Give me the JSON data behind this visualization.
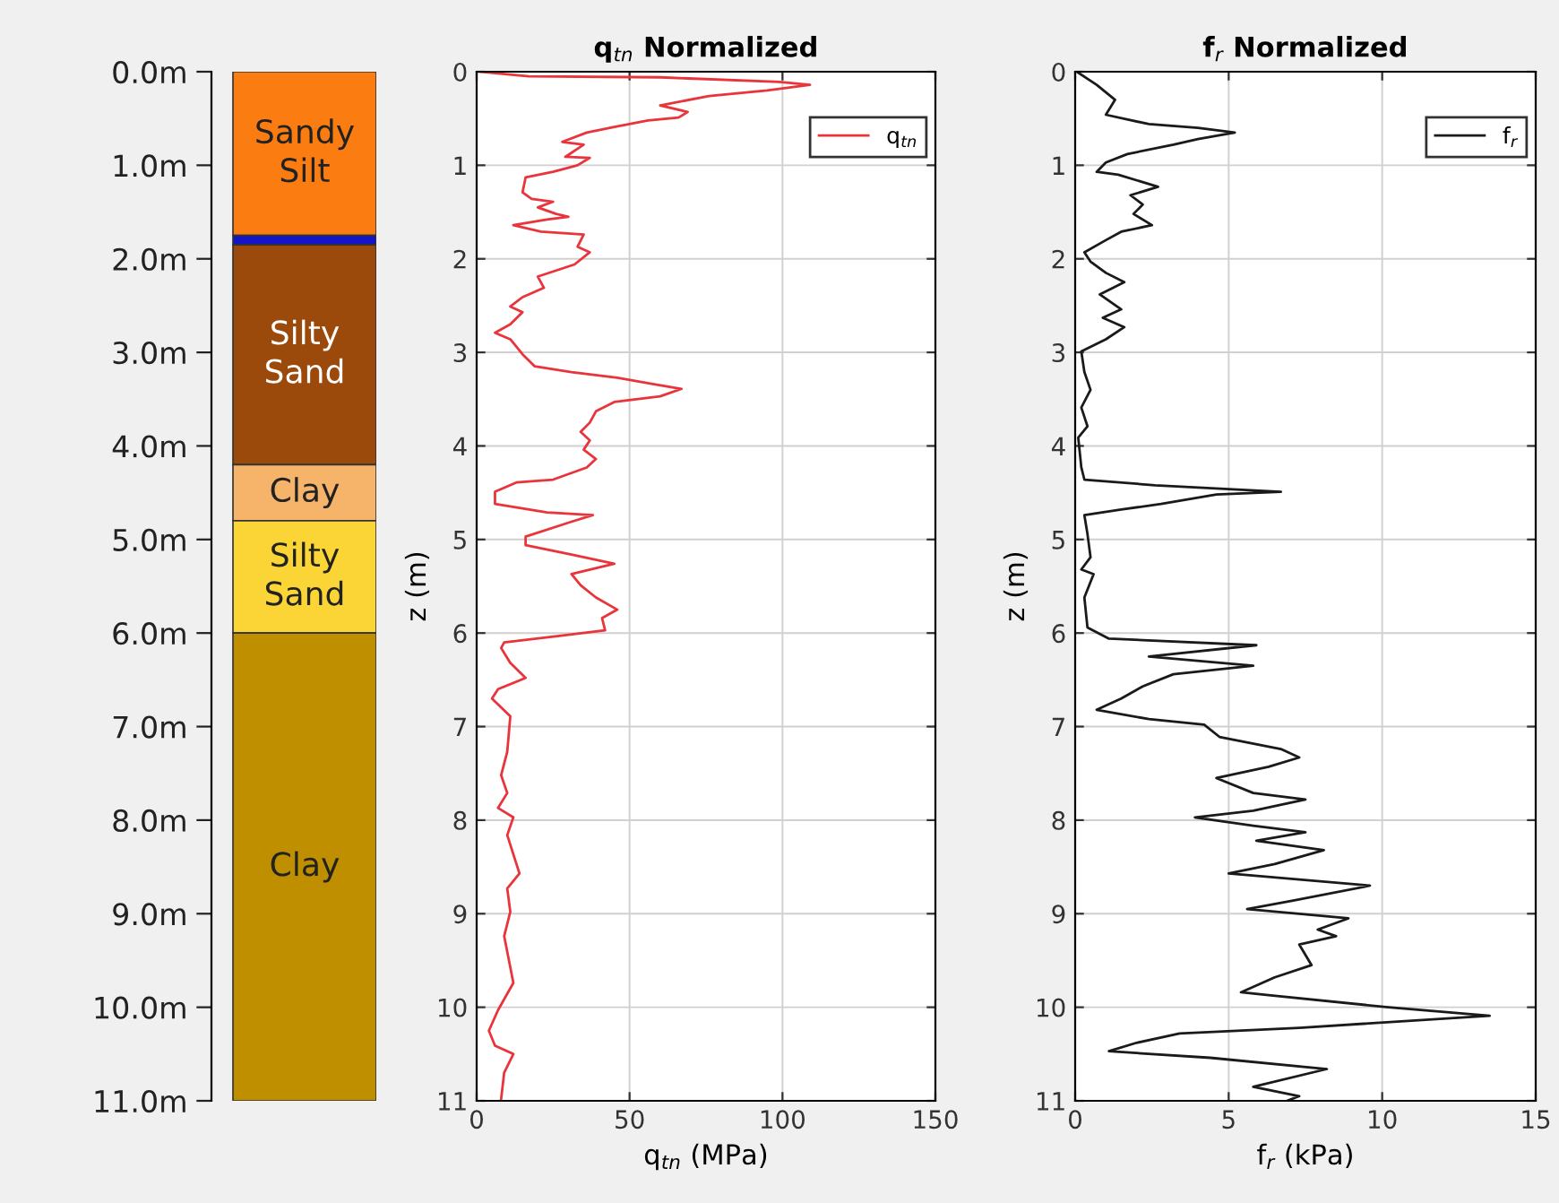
{
  "chart_data": [
    {
      "type": "bar",
      "stacked": true,
      "categories": [
        null
      ],
      "tick_labels": "y",
      "ylim": [
        11,
        0
      ],
      "yticks": [
        {
          "value": 0,
          "label": "0.0m"
        },
        {
          "value": 1,
          "label": "1.0m"
        },
        {
          "value": 2,
          "label": "2.0m"
        },
        {
          "value": 3,
          "label": "3.0m"
        },
        {
          "value": 4,
          "label": "4.0m"
        },
        {
          "value": 5,
          "label": "5.0m"
        },
        {
          "value": 6,
          "label": "6.0m"
        },
        {
          "value": 7,
          "label": "7.0m"
        },
        {
          "value": 8,
          "label": "8.0m"
        },
        {
          "value": 9,
          "label": "9.0m"
        },
        {
          "value": 10,
          "label": "10.0m"
        },
        {
          "value": 11,
          "label": "11.0m"
        }
      ],
      "series": [
        {
          "name": "Sandy Silt",
          "color": "#fb7d12",
          "values": [
            1.75
          ]
        },
        {
          "color": "#1414c8",
          "values": [
            0.1
          ]
        },
        {
          "name": "Silty Sand",
          "color": "#9b4a0b",
          "values": [
            2.35
          ]
        },
        {
          "name": "Clay",
          "color": "#f6b36a",
          "values": [
            0.6
          ]
        },
        {
          "name": "Silty Sand",
          "color": "#fbd535",
          "values": [
            1.2
          ]
        },
        {
          "name": "Clay",
          "color": "#bf8f00",
          "values": [
            5.0
          ]
        }
      ]
    },
    {
      "type": "line",
      "title": "q$_{tn}$ Normalized",
      "xlabel": "q$_{tn}$ (MPa)",
      "ylabel": "z (m)",
      "xlim": [
        0,
        150
      ],
      "xticks": [
        0,
        50,
        100,
        150
      ],
      "ylim": [
        11,
        0
      ],
      "yticks": [
        0,
        1,
        2,
        3,
        4,
        5,
        6,
        7,
        8,
        9,
        10,
        11
      ],
      "grid": true,
      "legend": "top right",
      "series": [
        {
          "name": "q$_{tn}$",
          "color": "#e8343a",
          "x": [
            1,
            17,
            60,
            99,
            109,
            95,
            76,
            60,
            69,
            66,
            56,
            45,
            36,
            28,
            35,
            29,
            37,
            33,
            25,
            16,
            15,
            18,
            25,
            20,
            26,
            30,
            23,
            12,
            21,
            35,
            33,
            37,
            32,
            20,
            22,
            15,
            11,
            15,
            11,
            6,
            11,
            15,
            19,
            31,
            46,
            58,
            67,
            60,
            45,
            39,
            37,
            34,
            37,
            35,
            39,
            36,
            25,
            13,
            6,
            6,
            23,
            38,
            31,
            16,
            16,
            31,
            45,
            31,
            34,
            39,
            46,
            41,
            42,
            27,
            9,
            8,
            11,
            16,
            7,
            5,
            11,
            10,
            8,
            10,
            7,
            12,
            10,
            14,
            10,
            11,
            9,
            12,
            7,
            4,
            6,
            12,
            9,
            8
          ],
          "values": [
            0,
            0.05,
            0.06,
            0.11,
            0.14,
            0.2,
            0.26,
            0.36,
            0.43,
            0.49,
            0.52,
            0.59,
            0.65,
            0.75,
            0.78,
            0.91,
            0.92,
            1.0,
            1.07,
            1.13,
            1.29,
            1.36,
            1.39,
            1.45,
            1.52,
            1.55,
            1.58,
            1.64,
            1.71,
            1.74,
            1.87,
            1.93,
            2.06,
            2.19,
            2.31,
            2.41,
            2.51,
            2.57,
            2.7,
            2.79,
            2.86,
            3.02,
            3.15,
            3.21,
            3.27,
            3.34,
            3.39,
            3.47,
            3.53,
            3.63,
            3.75,
            3.85,
            3.94,
            4.04,
            4.14,
            4.23,
            4.36,
            4.39,
            4.49,
            4.62,
            4.71,
            4.74,
            4.81,
            4.97,
            5.06,
            5.16,
            5.26,
            5.37,
            5.49,
            5.62,
            5.75,
            5.84,
            5.97,
            6.03,
            6.1,
            6.16,
            6.32,
            6.48,
            6.6,
            6.7,
            6.89,
            7.27,
            7.52,
            7.71,
            7.87,
            7.97,
            8.16,
            8.57,
            8.73,
            8.98,
            9.24,
            9.74,
            10.03,
            10.25,
            10.41,
            10.5,
            10.7,
            10.98
          ]
        }
      ]
    },
    {
      "type": "line",
      "title": "f$_{r}$ Normalized",
      "xlabel": "f$_{r}$ (kPa)",
      "ylabel": "z (m)",
      "xlim": [
        0,
        15
      ],
      "xticks": [
        0,
        5,
        10,
        15
      ],
      "ylim": [
        11,
        0
      ],
      "yticks": [
        0,
        1,
        2,
        3,
        4,
        5,
        6,
        7,
        8,
        9,
        10,
        11
      ],
      "grid": true,
      "legend": "top right",
      "series": [
        {
          "name": "f$_{r}$",
          "color": "#1a1a1a",
          "x": [
            0.1,
            0.7,
            1.3,
            1.0,
            2.4,
            4.0,
            5.2,
            4.0,
            3.2,
            1.7,
            1.0,
            0.7,
            1.4,
            2.7,
            1.8,
            2.2,
            1.9,
            2.5,
            1.5,
            1.0,
            0.3,
            0.5,
            1.0,
            1.6,
            0.8,
            1.5,
            0.9,
            1.6,
            1.0,
            0.2,
            0.3,
            0.5,
            0.2,
            0.4,
            0.1,
            0.2,
            0.3,
            2.6,
            6.7,
            4.6,
            2.8,
            1.5,
            0.3,
            0.4,
            0.5,
            0.2,
            0.6,
            0.3,
            0.4,
            1.1,
            5.9,
            2.4,
            5.8,
            3.2,
            2.2,
            1.5,
            0.7,
            2.4,
            4.2,
            4.7,
            6.7,
            7.3,
            6.3,
            4.6,
            5.8,
            7.5,
            5.8,
            3.9,
            5.8,
            7.5,
            5.9,
            8.1,
            6.5,
            5.0,
            9.6,
            7.1,
            5.6,
            8.9,
            7.9,
            8.5,
            7.3,
            7.7,
            6.5,
            5.4,
            6.3,
            10.2,
            13.5,
            7.3,
            3.4,
            2.0,
            1.1,
            4.4,
            8.2,
            5.8,
            7.3,
            6.9
          ],
          "values": [
            0.01,
            0.14,
            0.3,
            0.46,
            0.56,
            0.6,
            0.65,
            0.72,
            0.78,
            0.88,
            0.97,
            1.07,
            1.1,
            1.23,
            1.32,
            1.42,
            1.52,
            1.64,
            1.71,
            1.8,
            1.93,
            2.03,
            2.15,
            2.25,
            2.38,
            2.54,
            2.63,
            2.73,
            2.86,
            2.99,
            3.21,
            3.4,
            3.59,
            3.79,
            3.91,
            4.23,
            4.36,
            4.42,
            4.49,
            4.52,
            4.62,
            4.68,
            4.74,
            4.94,
            5.19,
            5.32,
            5.37,
            5.62,
            5.94,
            6.06,
            6.13,
            6.25,
            6.35,
            6.44,
            6.57,
            6.7,
            6.82,
            6.92,
            6.98,
            7.11,
            7.24,
            7.33,
            7.43,
            7.55,
            7.71,
            7.78,
            7.9,
            7.97,
            8.06,
            8.13,
            8.22,
            8.32,
            8.47,
            8.57,
            8.7,
            8.86,
            8.95,
            9.05,
            9.17,
            9.24,
            9.33,
            9.55,
            9.68,
            9.84,
            9.87,
            10.0,
            10.09,
            10.22,
            10.28,
            10.38,
            10.47,
            10.54,
            10.66,
            10.85,
            10.95,
            11.0
          ]
        }
      ]
    }
  ]
}
